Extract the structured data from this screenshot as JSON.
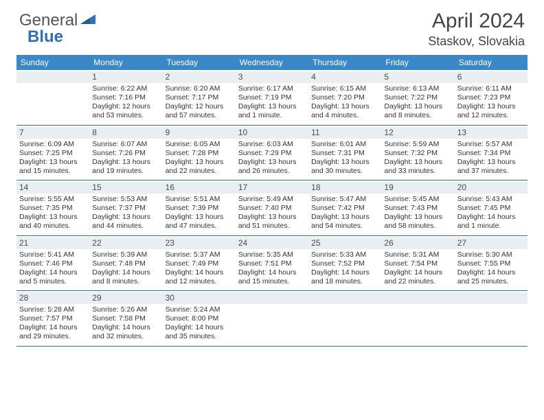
{
  "logo": {
    "general": "General",
    "blue": "Blue"
  },
  "title": {
    "monthYear": "April 2024",
    "location": "Staskov, Slovakia"
  },
  "colors": {
    "headerBar": "#3a88c7",
    "dayStrip": "#e9eef2",
    "weekRule": "#2f6ea5",
    "logoBlue": "#2d72b8",
    "text": "#333333"
  },
  "weekdays": [
    "Sunday",
    "Monday",
    "Tuesday",
    "Wednesday",
    "Thursday",
    "Friday",
    "Saturday"
  ],
  "weeks": [
    [
      {
        "n": "",
        "lines": []
      },
      {
        "n": "1",
        "lines": [
          "Sunrise: 6:22 AM",
          "Sunset: 7:16 PM",
          "Daylight: 12 hours",
          "and 53 minutes."
        ]
      },
      {
        "n": "2",
        "lines": [
          "Sunrise: 6:20 AM",
          "Sunset: 7:17 PM",
          "Daylight: 12 hours",
          "and 57 minutes."
        ]
      },
      {
        "n": "3",
        "lines": [
          "Sunrise: 6:17 AM",
          "Sunset: 7:19 PM",
          "Daylight: 13 hours",
          "and 1 minute."
        ]
      },
      {
        "n": "4",
        "lines": [
          "Sunrise: 6:15 AM",
          "Sunset: 7:20 PM",
          "Daylight: 13 hours",
          "and 4 minutes."
        ]
      },
      {
        "n": "5",
        "lines": [
          "Sunrise: 6:13 AM",
          "Sunset: 7:22 PM",
          "Daylight: 13 hours",
          "and 8 minutes."
        ]
      },
      {
        "n": "6",
        "lines": [
          "Sunrise: 6:11 AM",
          "Sunset: 7:23 PM",
          "Daylight: 13 hours",
          "and 12 minutes."
        ]
      }
    ],
    [
      {
        "n": "7",
        "lines": [
          "Sunrise: 6:09 AM",
          "Sunset: 7:25 PM",
          "Daylight: 13 hours",
          "and 15 minutes."
        ]
      },
      {
        "n": "8",
        "lines": [
          "Sunrise: 6:07 AM",
          "Sunset: 7:26 PM",
          "Daylight: 13 hours",
          "and 19 minutes."
        ]
      },
      {
        "n": "9",
        "lines": [
          "Sunrise: 6:05 AM",
          "Sunset: 7:28 PM",
          "Daylight: 13 hours",
          "and 22 minutes."
        ]
      },
      {
        "n": "10",
        "lines": [
          "Sunrise: 6:03 AM",
          "Sunset: 7:29 PM",
          "Daylight: 13 hours",
          "and 26 minutes."
        ]
      },
      {
        "n": "11",
        "lines": [
          "Sunrise: 6:01 AM",
          "Sunset: 7:31 PM",
          "Daylight: 13 hours",
          "and 30 minutes."
        ]
      },
      {
        "n": "12",
        "lines": [
          "Sunrise: 5:59 AM",
          "Sunset: 7:32 PM",
          "Daylight: 13 hours",
          "and 33 minutes."
        ]
      },
      {
        "n": "13",
        "lines": [
          "Sunrise: 5:57 AM",
          "Sunset: 7:34 PM",
          "Daylight: 13 hours",
          "and 37 minutes."
        ]
      }
    ],
    [
      {
        "n": "14",
        "lines": [
          "Sunrise: 5:55 AM",
          "Sunset: 7:35 PM",
          "Daylight: 13 hours",
          "and 40 minutes."
        ]
      },
      {
        "n": "15",
        "lines": [
          "Sunrise: 5:53 AM",
          "Sunset: 7:37 PM",
          "Daylight: 13 hours",
          "and 44 minutes."
        ]
      },
      {
        "n": "16",
        "lines": [
          "Sunrise: 5:51 AM",
          "Sunset: 7:39 PM",
          "Daylight: 13 hours",
          "and 47 minutes."
        ]
      },
      {
        "n": "17",
        "lines": [
          "Sunrise: 5:49 AM",
          "Sunset: 7:40 PM",
          "Daylight: 13 hours",
          "and 51 minutes."
        ]
      },
      {
        "n": "18",
        "lines": [
          "Sunrise: 5:47 AM",
          "Sunset: 7:42 PM",
          "Daylight: 13 hours",
          "and 54 minutes."
        ]
      },
      {
        "n": "19",
        "lines": [
          "Sunrise: 5:45 AM",
          "Sunset: 7:43 PM",
          "Daylight: 13 hours",
          "and 58 minutes."
        ]
      },
      {
        "n": "20",
        "lines": [
          "Sunrise: 5:43 AM",
          "Sunset: 7:45 PM",
          "Daylight: 14 hours",
          "and 1 minute."
        ]
      }
    ],
    [
      {
        "n": "21",
        "lines": [
          "Sunrise: 5:41 AM",
          "Sunset: 7:46 PM",
          "Daylight: 14 hours",
          "and 5 minutes."
        ]
      },
      {
        "n": "22",
        "lines": [
          "Sunrise: 5:39 AM",
          "Sunset: 7:48 PM",
          "Daylight: 14 hours",
          "and 8 minutes."
        ]
      },
      {
        "n": "23",
        "lines": [
          "Sunrise: 5:37 AM",
          "Sunset: 7:49 PM",
          "Daylight: 14 hours",
          "and 12 minutes."
        ]
      },
      {
        "n": "24",
        "lines": [
          "Sunrise: 5:35 AM",
          "Sunset: 7:51 PM",
          "Daylight: 14 hours",
          "and 15 minutes."
        ]
      },
      {
        "n": "25",
        "lines": [
          "Sunrise: 5:33 AM",
          "Sunset: 7:52 PM",
          "Daylight: 14 hours",
          "and 18 minutes."
        ]
      },
      {
        "n": "26",
        "lines": [
          "Sunrise: 5:31 AM",
          "Sunset: 7:54 PM",
          "Daylight: 14 hours",
          "and 22 minutes."
        ]
      },
      {
        "n": "27",
        "lines": [
          "Sunrise: 5:30 AM",
          "Sunset: 7:55 PM",
          "Daylight: 14 hours",
          "and 25 minutes."
        ]
      }
    ],
    [
      {
        "n": "28",
        "lines": [
          "Sunrise: 5:28 AM",
          "Sunset: 7:57 PM",
          "Daylight: 14 hours",
          "and 29 minutes."
        ]
      },
      {
        "n": "29",
        "lines": [
          "Sunrise: 5:26 AM",
          "Sunset: 7:58 PM",
          "Daylight: 14 hours",
          "and 32 minutes."
        ]
      },
      {
        "n": "30",
        "lines": [
          "Sunrise: 5:24 AM",
          "Sunset: 8:00 PM",
          "Daylight: 14 hours",
          "and 35 minutes."
        ]
      },
      {
        "n": "",
        "lines": []
      },
      {
        "n": "",
        "lines": []
      },
      {
        "n": "",
        "lines": []
      },
      {
        "n": "",
        "lines": []
      }
    ]
  ]
}
